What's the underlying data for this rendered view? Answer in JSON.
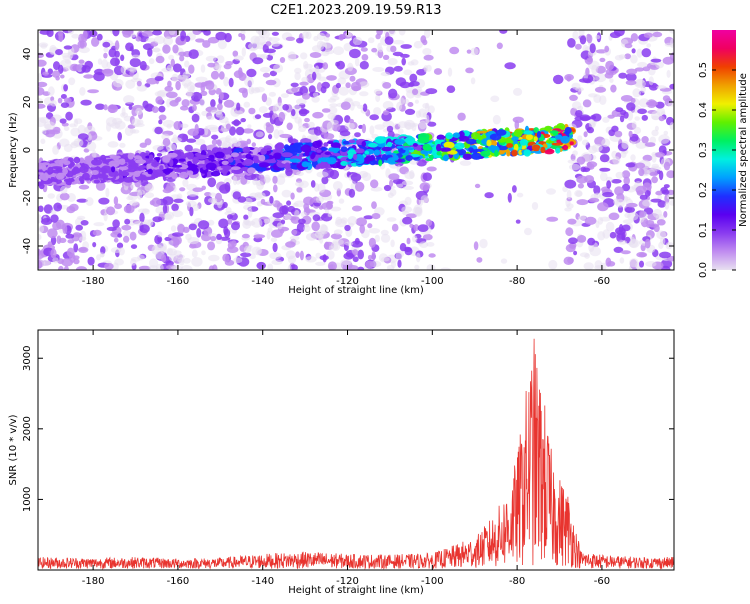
{
  "title": "C2E1.2023.209.19.59.R13",
  "colors": {
    "snr_line": "#e8342f",
    "colormap": [
      "#e8e0f0",
      "#c08cf0",
      "#8a3cf0",
      "#5a00f0",
      "#1e30ff",
      "#00a0ff",
      "#00f0e0",
      "#00f060",
      "#60f000",
      "#f0f000",
      "#f0a000",
      "#f04000",
      "#f00060",
      "#f000a0"
    ]
  },
  "chart_data": [
    {
      "type": "heatmap",
      "xlabel": "Height of straight line (km)",
      "ylabel": "Frequency (Hz)",
      "xlim": [
        -193,
        -43
      ],
      "ylim": [
        -50,
        50
      ],
      "xticks": [
        -180,
        -160,
        -140,
        -120,
        -100,
        -80,
        -60
      ],
      "yticks": [
        -40,
        -20,
        0,
        20,
        40
      ],
      "colorbar": {
        "label": "Normalized spectral amplitude",
        "range": [
          0,
          0.6
        ],
        "ticks": [
          0.0,
          0.1,
          0.2,
          0.3,
          0.4,
          0.5
        ]
      },
      "features": [
        {
          "description": "Signal trace",
          "x_range": [
            -193,
            -67
          ],
          "frequency_start": -10,
          "frequency_end": 5
        },
        {
          "description": "Empty region",
          "x_range": [
            -100,
            -68
          ],
          "frequency_range": [
            -50,
            50
          ]
        }
      ]
    },
    {
      "type": "line",
      "xlabel": "Height of straight line (km)",
      "ylabel": "SNR (10 * v/v)",
      "xlim": [
        -193,
        -43
      ],
      "ylim": [
        0,
        3400
      ],
      "xticks": [
        -180,
        -160,
        -140,
        -120,
        -100,
        -80,
        -60
      ],
      "yticks": [
        1000,
        2000,
        3000
      ],
      "series": [
        {
          "name": "",
          "x": [
            -193,
            -180,
            -170,
            -160,
            -150,
            -140,
            -130,
            -120,
            -110,
            -100,
            -95,
            -90,
            -85,
            -82,
            -80,
            -78,
            -76,
            -75,
            -74,
            -72,
            -70,
            -68,
            -65,
            -60,
            -55,
            -50,
            -43
          ],
          "y": [
            150,
            140,
            150,
            130,
            140,
            190,
            220,
            190,
            180,
            200,
            300,
            420,
            800,
            1150,
            1600,
            2500,
            3300,
            2800,
            2600,
            1700,
            1300,
            1100,
            230,
            180,
            160,
            150,
            150
          ]
        }
      ]
    }
  ]
}
